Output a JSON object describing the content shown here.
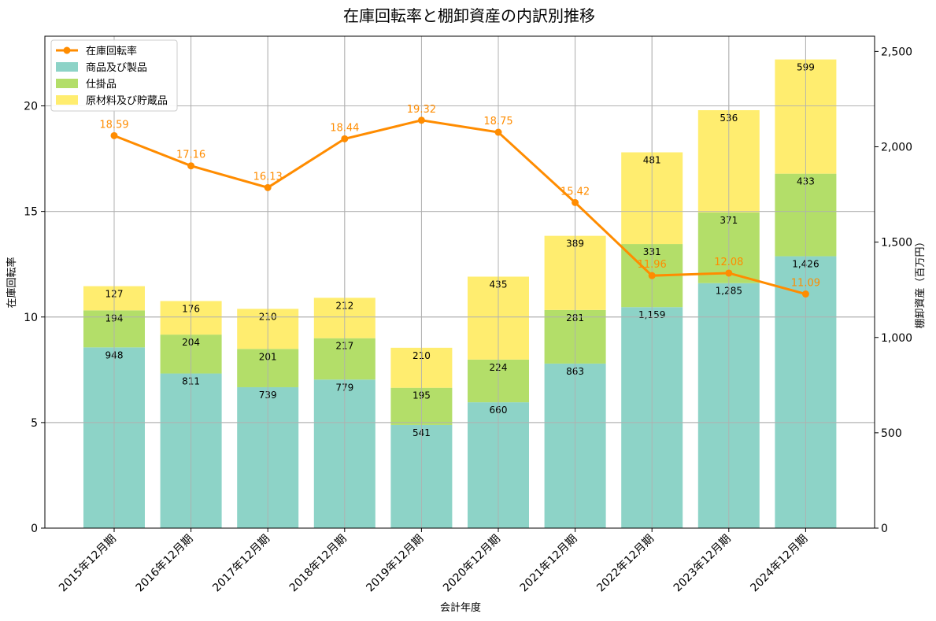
{
  "chart_data": {
    "type": "bar",
    "title": "在庫回転率と棚卸資産の内訳別推移",
    "xlabel": "会計年度",
    "ylabel_left": "在庫回転率",
    "ylabel_right": "棚卸資産（百万円）",
    "categories": [
      "2015年12月期",
      "2016年12月期",
      "2017年12月期",
      "2018年12月期",
      "2019年12月期",
      "2020年12月期",
      "2021年12月期",
      "2022年12月期",
      "2023年12月期",
      "2024年12月期"
    ],
    "ylim_left": [
      0,
      23.3
    ],
    "ylim_right": [
      0,
      2580
    ],
    "yticks_left": [
      "0",
      "5",
      "10",
      "15",
      "20"
    ],
    "yticks_right": [
      "0",
      "500",
      "1,000",
      "1,500",
      "2,000",
      "2,500"
    ],
    "grid": true,
    "legend_position": "top-left",
    "series": [
      {
        "name": "商品及び製品",
        "kind": "stacked-bar",
        "axis": "right",
        "color": "#8dd3c7",
        "values": [
          948,
          811,
          739,
          779,
          541,
          660,
          863,
          1159,
          1285,
          1426
        ],
        "labels": [
          "948",
          "811",
          "739",
          "779",
          "541",
          "660",
          "863",
          "1,159",
          "1,285",
          "1,426"
        ]
      },
      {
        "name": "仕掛品",
        "kind": "stacked-bar",
        "axis": "right",
        "color": "#b3de69",
        "values": [
          194,
          204,
          201,
          217,
          195,
          224,
          281,
          331,
          371,
          433
        ],
        "labels": [
          "194",
          "204",
          "201",
          "217",
          "195",
          "224",
          "281",
          "331",
          "371",
          "433"
        ]
      },
      {
        "name": "原材料及び貯蔵品",
        "kind": "stacked-bar",
        "axis": "right",
        "color": "#ffed6f",
        "values": [
          127,
          176,
          210,
          212,
          210,
          435,
          389,
          481,
          536,
          599
        ],
        "labels": [
          "127",
          "176",
          "210",
          "212",
          "210",
          "435",
          "389",
          "481",
          "536",
          "599"
        ]
      },
      {
        "name": "在庫回転率",
        "kind": "line",
        "axis": "left",
        "color": "#ff8c00",
        "values": [
          18.59,
          17.16,
          16.13,
          18.44,
          19.32,
          18.75,
          15.42,
          11.96,
          12.08,
          11.09
        ],
        "labels": [
          "18.59",
          "17.16",
          "16.13",
          "18.44",
          "19.32",
          "18.75",
          "15.42",
          "11.96",
          "12.08",
          "11.09"
        ]
      }
    ]
  }
}
